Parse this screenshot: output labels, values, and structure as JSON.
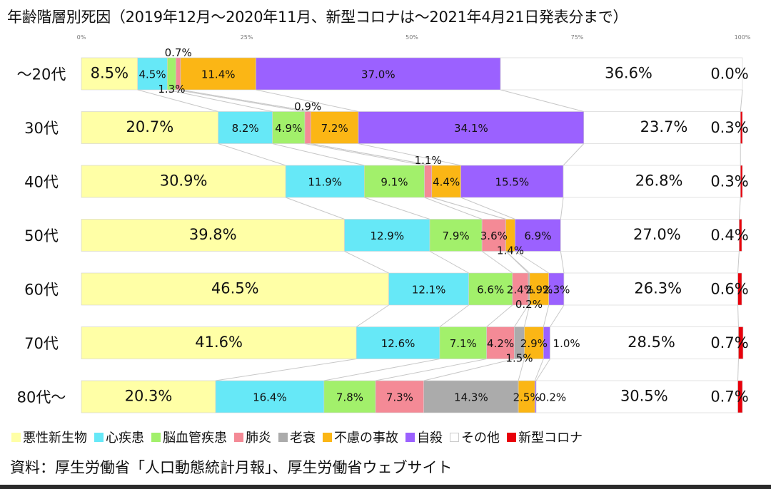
{
  "title": "年齢階層別死因（2019年12月～2020年11月、新型コロナは～2021年4月21日発表分まで）",
  "source": "資料：厚生労働省「人口動態統計月報」、厚生労働省ウェブサイト",
  "chart_data": {
    "type": "bar",
    "orientation": "horizontal",
    "stacked": "percent",
    "unit": "%",
    "xlim": [
      0,
      100
    ],
    "x_tick_labels": [
      "0%",
      "25%",
      "50%",
      "75%",
      "100%"
    ],
    "categories": [
      "～20代",
      "30代",
      "40代",
      "50代",
      "60代",
      "70代",
      "80代～"
    ],
    "series": [
      {
        "name": "悪性新生物",
        "color": "#FFFFA6",
        "values": [
          8.5,
          20.7,
          30.9,
          39.8,
          46.5,
          41.6,
          20.3
        ]
      },
      {
        "name": "心疾患",
        "color": "#66E8F7",
        "values": [
          4.5,
          8.2,
          11.9,
          12.9,
          12.1,
          12.6,
          16.4
        ]
      },
      {
        "name": "脳血管疾患",
        "color": "#A2F06B",
        "values": [
          1.3,
          4.9,
          9.1,
          7.9,
          6.6,
          7.1,
          7.8
        ]
      },
      {
        "name": "肺炎",
        "color": "#F48A96",
        "values": [
          0.7,
          0.9,
          1.1,
          3.6,
          2.4,
          4.2,
          7.3
        ]
      },
      {
        "name": "老衰",
        "color": "#ABABAB",
        "values": [
          0.0,
          0.0,
          0.0,
          0.0,
          0.2,
          1.5,
          14.3
        ]
      },
      {
        "name": "不慮の事故",
        "color": "#FBB615",
        "values": [
          11.4,
          7.2,
          4.4,
          1.4,
          2.9,
          2.9,
          2.5
        ]
      },
      {
        "name": "自殺",
        "color": "#9B61FF",
        "values": [
          37.0,
          34.1,
          15.5,
          6.9,
          2.3,
          1.0,
          0.2
        ]
      },
      {
        "name": "その他",
        "color": "#FFFFFF",
        "values": [
          36.6,
          23.7,
          26.8,
          27.0,
          26.3,
          28.5,
          30.5
        ]
      },
      {
        "name": "新型コロナ",
        "color": "#E8000B",
        "values": [
          0.0,
          0.3,
          0.3,
          0.4,
          0.6,
          0.7,
          0.7
        ]
      }
    ],
    "data_labels": [
      [
        "8.5%",
        "4.5%",
        "1.3%",
        "0.7%",
        "",
        "11.4%",
        "37.0%",
        "36.6%",
        "0.0%"
      ],
      [
        "20.7%",
        "8.2%",
        "4.9%",
        "0.9%",
        "",
        "7.2%",
        "34.1%",
        "23.7%",
        "0.3%"
      ],
      [
        "30.9%",
        "11.9%",
        "9.1%",
        "1.1%",
        "",
        "4.4%",
        "15.5%",
        "26.8%",
        "0.3%"
      ],
      [
        "39.8%",
        "12.9%",
        "7.9%",
        "3.6%",
        "",
        "1.4%",
        "6.9%",
        "27.0%",
        "0.4%"
      ],
      [
        "46.5%",
        "12.1%",
        "6.6%",
        "2.4%",
        "0.2%",
        "2.9%",
        "2.3%",
        "26.3%",
        "0.6%"
      ],
      [
        "41.6%",
        "12.6%",
        "7.1%",
        "4.2%",
        "1.5%",
        "2.9%",
        "1.0%",
        "28.5%",
        "0.7%"
      ],
      [
        "20.3%",
        "16.4%",
        "7.8%",
        "7.3%",
        "14.3%",
        "2.5%",
        "0.2%",
        "30.5%",
        "0.7%"
      ]
    ],
    "series_lines": true,
    "grid": false,
    "legend_position": "bottom"
  }
}
